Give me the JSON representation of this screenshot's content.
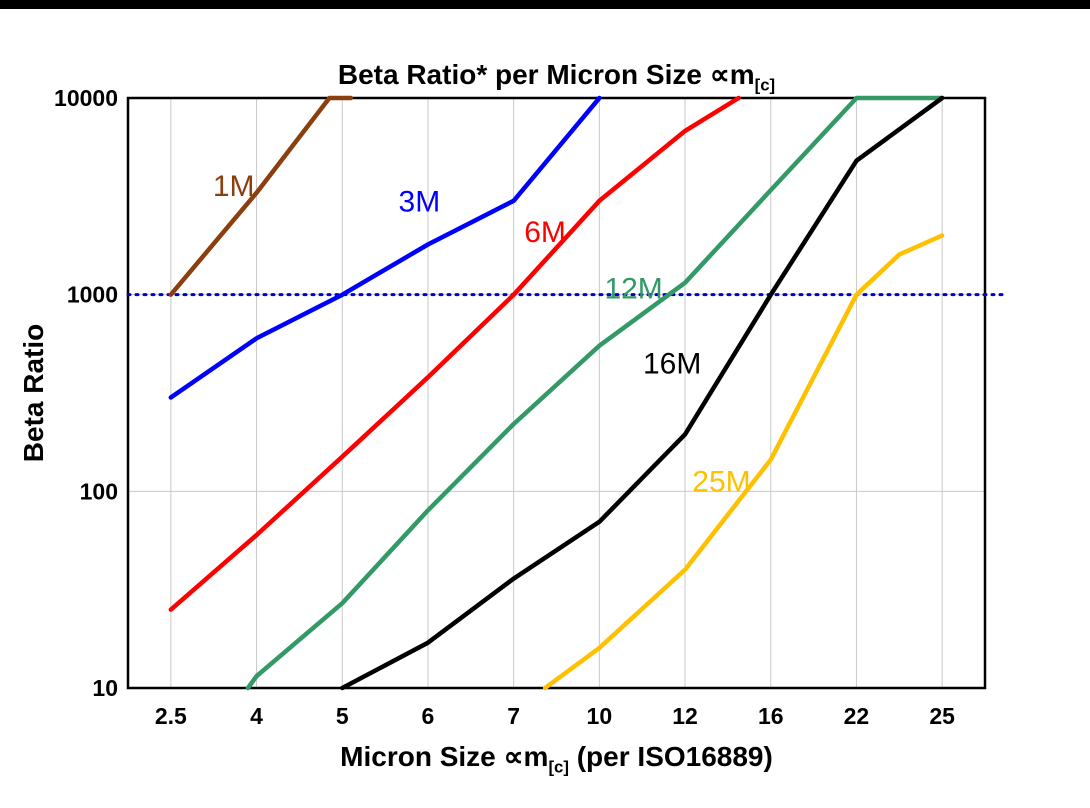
{
  "page": {
    "background": "#ffffff",
    "top_border_color": "#000000"
  },
  "chart_data": {
    "type": "line",
    "title": "Beta Ratio* per Micron Size ∝m[c]",
    "title_parts": {
      "pre": "Beta Ratio* per Micron Size ∝m",
      "sub": "[c]"
    },
    "xlabel": "Micron Size ∝m[c] (per ISO16889)",
    "xlabel_parts": {
      "pre": "Micron Size ∝m",
      "sub": "[c]",
      "post": " (per ISO16889)"
    },
    "ylabel": "Beta Ratio",
    "x_categories": [
      2.5,
      4,
      5,
      6,
      7,
      10,
      12,
      16,
      22,
      25
    ],
    "x_tick_labels": [
      "2.5",
      "4",
      "5",
      "6",
      "7",
      "10",
      "12",
      "16",
      "22",
      "25"
    ],
    "x_axis_spacing": "categorical-even",
    "y_scale": "log",
    "ylim": [
      10,
      10000
    ],
    "y_ticks": [
      10,
      100,
      1000,
      10000
    ],
    "y_tick_labels": [
      "10",
      "100",
      "1000",
      "10000"
    ],
    "grid": true,
    "grid_color": "#c9c9c9",
    "legend_position": "inline-labels",
    "reference_line": {
      "y": 1000,
      "color": "#0000cc",
      "style": "dotted"
    },
    "series": [
      {
        "name": "1M",
        "color": "#8b3e0e",
        "label": {
          "x": 3.6,
          "y": 3600
        },
        "points": [
          [
            2.5,
            1000
          ],
          [
            4,
            3300
          ],
          [
            4.85,
            10000
          ],
          [
            5.1,
            10000
          ]
        ]
      },
      {
        "name": "3M",
        "color": "#0000ff",
        "label": {
          "x": 5.9,
          "y": 3000
        },
        "points": [
          [
            2.5,
            300
          ],
          [
            4,
            600
          ],
          [
            5,
            1000
          ],
          [
            6,
            1800
          ],
          [
            7,
            3000
          ],
          [
            10,
            10000
          ]
        ]
      },
      {
        "name": "6M",
        "color": "#ff0000",
        "label": {
          "x": 8.1,
          "y": 2100
        },
        "points": [
          [
            2.5,
            25
          ],
          [
            4,
            60
          ],
          [
            5,
            150
          ],
          [
            6,
            380
          ],
          [
            7,
            1000
          ],
          [
            10,
            3000
          ],
          [
            12,
            6800
          ],
          [
            14.5,
            10000
          ]
        ]
      },
      {
        "name": "12M",
        "color": "#339966",
        "label": {
          "x": 10.8,
          "y": 1080
        },
        "points": [
          [
            3.85,
            10
          ],
          [
            4,
            11.5
          ],
          [
            5,
            27
          ],
          [
            6,
            80
          ],
          [
            7,
            220
          ],
          [
            10,
            550
          ],
          [
            12,
            1150
          ],
          [
            16,
            3400
          ],
          [
            22,
            10000
          ],
          [
            25,
            10000
          ]
        ]
      },
      {
        "name": "16M",
        "color": "#000000",
        "label": {
          "x": 11.7,
          "y": 450
        },
        "points": [
          [
            5,
            10
          ],
          [
            6,
            17
          ],
          [
            7,
            36
          ],
          [
            10,
            70
          ],
          [
            12,
            195
          ],
          [
            16,
            1000
          ],
          [
            22,
            4800
          ],
          [
            25,
            10000
          ]
        ]
      },
      {
        "name": "25M",
        "color": "#ffc000",
        "label": {
          "x": 13.7,
          "y": 113
        },
        "points": [
          [
            8.1,
            10
          ],
          [
            10,
            16
          ],
          [
            12,
            40
          ],
          [
            16,
            145
          ],
          [
            22,
            1000
          ],
          [
            23.5,
            1600
          ],
          [
            25,
            2000
          ]
        ]
      }
    ]
  }
}
